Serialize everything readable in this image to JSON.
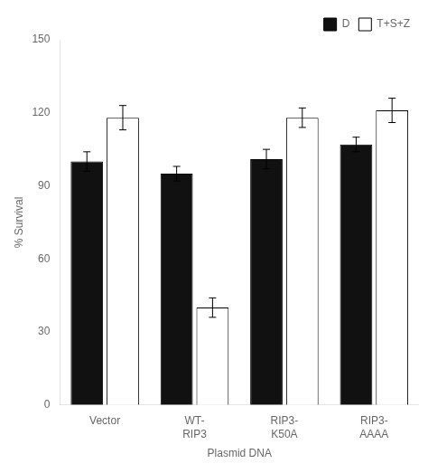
{
  "chart_data": {
    "type": "bar",
    "categories": [
      "Vector",
      "WT-\nRIP3",
      "RIP3-\nK50A",
      "RIP3-\nAAAA"
    ],
    "series": [
      {
        "name": "D",
        "color": "#111111",
        "values": [
          100,
          95,
          101,
          107
        ],
        "errors": [
          4,
          3,
          4,
          3
        ]
      },
      {
        "name": "T+S+Z",
        "color": "#ffffff",
        "values": [
          118,
          40,
          118,
          121
        ],
        "errors": [
          5,
          4,
          4,
          5
        ]
      }
    ],
    "xlabel": "Plasmid DNA",
    "ylabel": "% Survival",
    "ylim": [
      0,
      150
    ],
    "yticks": [
      0,
      30,
      60,
      90,
      120,
      150
    ],
    "grid": false,
    "legend": "top-right"
  }
}
